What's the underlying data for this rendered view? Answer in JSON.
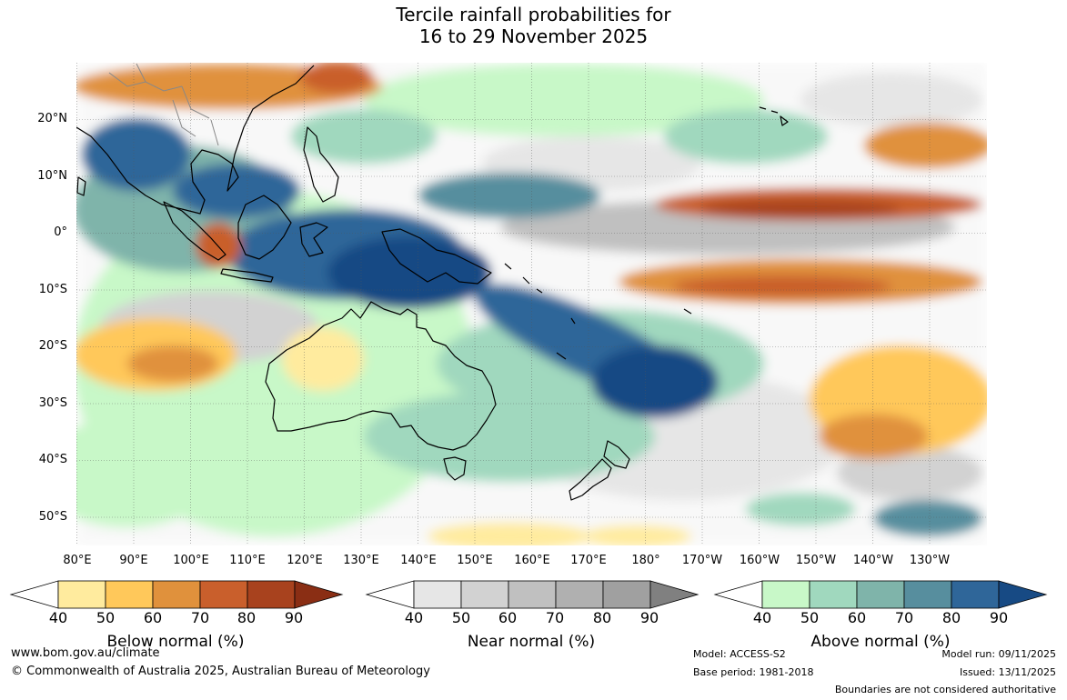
{
  "title": {
    "line1": "Tercile rainfall probabilities for",
    "line2": "16 to 29 November 2025"
  },
  "axes": {
    "lat_labels": [
      "20°N",
      "10°N",
      "0°",
      "10°S",
      "20°S",
      "30°S",
      "40°S",
      "50°S"
    ],
    "lon_labels": [
      "80°E",
      "90°E",
      "100°E",
      "110°E",
      "120°E",
      "130°E",
      "140°E",
      "150°E",
      "160°E",
      "170°E",
      "180°",
      "170°W",
      "160°W",
      "150°W",
      "140°W",
      "130°W"
    ]
  },
  "legends": [
    {
      "id": "below",
      "title": "Below normal (%)",
      "ticks": [
        "40",
        "50",
        "60",
        "70",
        "80",
        "90"
      ],
      "colors": [
        "#ffffff",
        "#ffeb9e",
        "#ffc85a",
        "#e0913c",
        "#c95f2c",
        "#a8421e",
        "#8a2e14"
      ]
    },
    {
      "id": "near",
      "title": "Near normal (%)",
      "ticks": [
        "40",
        "50",
        "60",
        "70",
        "80",
        "90"
      ],
      "colors": [
        "#ffffff",
        "#e6e6e6",
        "#d2d2d2",
        "#c0c0c0",
        "#b0b0b0",
        "#a0a0a0",
        "#808080"
      ]
    },
    {
      "id": "above",
      "title": "Above normal (%)",
      "ticks": [
        "40",
        "50",
        "60",
        "70",
        "80",
        "90"
      ],
      "colors": [
        "#ffffff",
        "#c8f8c8",
        "#a0d8be",
        "#7fb4aa",
        "#578e9e",
        "#2f6699",
        "#174a84"
      ]
    }
  ],
  "footer": {
    "website": "www.bom.gov.au/climate",
    "copyright": "© Commonwealth of Australia 2025, Australian Bureau of Meteorology",
    "model": "Model: ACCESS-S2",
    "base_period": "Base period: 1981-2018",
    "model_run": "Model run: 09/11/2025",
    "issued": "Issued: 13/11/2025",
    "boundaries": "Boundaries are not considered authoritative"
  }
}
